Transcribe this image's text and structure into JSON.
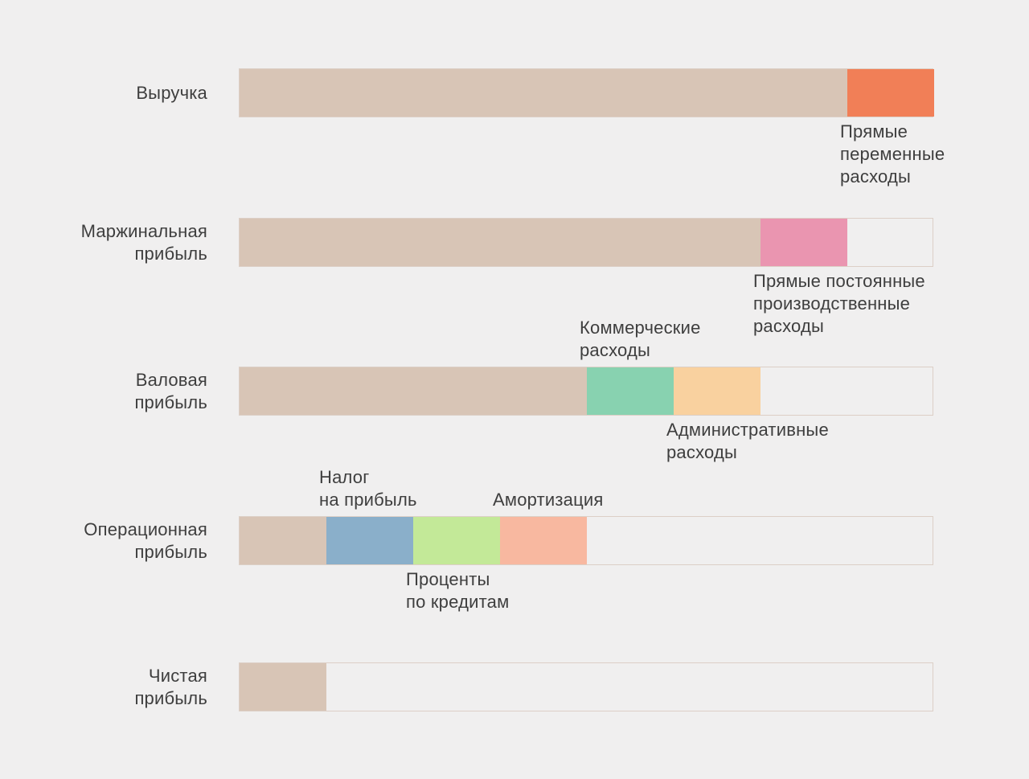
{
  "diagram": {
    "colors": {
      "profit": "#d8c5b6",
      "variable_costs": "#f17f57",
      "fixed_production_costs": "#ea95b0",
      "commercial_costs": "#88d2b0",
      "administrative_costs": "#f9d19f",
      "income_tax": "#8aafca",
      "loan_interest": "#c3e998",
      "amortization": "#f8b8a0",
      "track_border": "#dccfc6",
      "background": "#f0efef",
      "text": "#3e3e3e"
    },
    "rows": [
      {
        "id": "revenue",
        "label": "Выручка",
        "profit_share": 0.875,
        "segments": [
          {
            "id": "variable_costs",
            "label": "Прямые\nпеременные\nрасходы",
            "share": 0.125,
            "label_position": "below"
          }
        ]
      },
      {
        "id": "marginal",
        "label": "Маржинальная\nприбыль",
        "profit_share": 0.75,
        "segments": [
          {
            "id": "fixed_production_costs",
            "label": "Прямые постоянные\nпроизводственные\nрасходы",
            "share": 0.125,
            "label_position": "below"
          }
        ]
      },
      {
        "id": "gross",
        "label": "Валовая\nприбыль",
        "profit_share": 0.5,
        "segments": [
          {
            "id": "commercial_costs",
            "label": "Коммерческие\nрасходы",
            "share": 0.125,
            "label_position": "above"
          },
          {
            "id": "administrative_costs",
            "label": "Административные\nрасходы",
            "share": 0.125,
            "label_position": "below"
          }
        ]
      },
      {
        "id": "operating",
        "label": "Операционная\nприбыль",
        "profit_share": 0.125,
        "segments": [
          {
            "id": "income_tax",
            "label": "Налог\nна прибыль",
            "share": 0.125,
            "label_position": "above"
          },
          {
            "id": "loan_interest",
            "label": "Проценты\nпо кредитам",
            "share": 0.125,
            "label_position": "below"
          },
          {
            "id": "amortization",
            "label": "Амортизация",
            "share": 0.125,
            "label_position": "above"
          }
        ]
      },
      {
        "id": "net",
        "label": "Чистая\nприбыль",
        "profit_share": 0.125,
        "segments": []
      }
    ]
  }
}
